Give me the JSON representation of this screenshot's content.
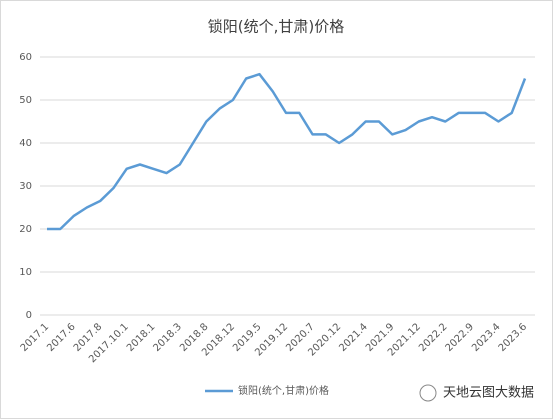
{
  "chart_data": {
    "type": "line",
    "title": "锁阳(统个,甘肃)价格",
    "categories": [
      "2017.1",
      null,
      "2017.6",
      null,
      "2017.8",
      null,
      "2017.10.1",
      null,
      "2018.1",
      null,
      "2018.3",
      null,
      "2018.8",
      null,
      "2018.12",
      null,
      "2019.5",
      null,
      "2019.12",
      null,
      "2020.7",
      null,
      "2020.12",
      null,
      "2021.4",
      null,
      "2021.9",
      null,
      "2021.12",
      null,
      "2022.2",
      null,
      "2022.9",
      null,
      "2023.4",
      null,
      "2023.6"
    ],
    "series": [
      {
        "name": "锁阳(统个,甘肃)价格",
        "color": "#5b9bd5",
        "values": [
          20,
          20,
          23,
          25,
          26.5,
          29.5,
          34,
          35,
          34,
          33,
          35,
          40,
          45,
          48,
          50,
          55,
          56,
          52,
          47,
          47,
          42,
          42,
          40,
          42,
          45,
          45,
          42,
          43,
          45,
          46,
          45,
          47,
          47,
          47,
          45,
          47,
          55
        ]
      }
    ],
    "ylim": [
      0,
      60
    ],
    "yticks": [
      0,
      10,
      20,
      30,
      40,
      50,
      60
    ],
    "grid": true,
    "legend": "bottom",
    "watermark": "天地云图大数据"
  }
}
